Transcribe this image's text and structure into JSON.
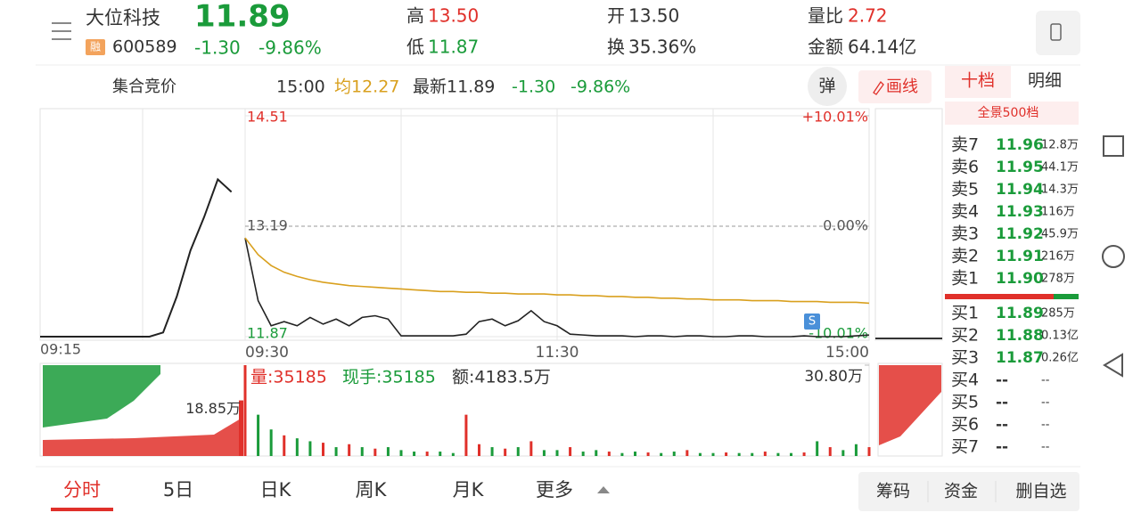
{
  "header": {
    "name": "大位科技",
    "price": "11.89",
    "tag": "融",
    "code": "600589",
    "change": "-1.30",
    "change_pct": "-9.86%",
    "stats": [
      {
        "label": "高",
        "value": "13.50"
      },
      {
        "label": "开",
        "value": "13.50"
      },
      {
        "label": "量比",
        "value": "2.72"
      },
      {
        "label": "低",
        "value": "11.87"
      },
      {
        "label": "换",
        "value": "35.36%"
      },
      {
        "label": "金额",
        "value": "64.14亿"
      }
    ]
  },
  "toolbar": {
    "mode": "集合竞价",
    "time": "15:00",
    "avg": "均12.27",
    "latest": "最新11.89",
    "change": "-1.30",
    "change_pct": "-9.86%",
    "popup": "弹",
    "draw": "画线"
  },
  "chart_data": {
    "type": "line",
    "x": [
      "09:30",
      "09:35",
      "09:40",
      "09:45",
      "09:50",
      "09:55",
      "10:00",
      "10:05",
      "10:10",
      "10:15",
      "10:20",
      "10:25",
      "10:30",
      "10:35",
      "10:40",
      "10:45",
      "10:50",
      "10:55",
      "11:00",
      "11:05",
      "11:10",
      "11:15",
      "11:20",
      "11:25",
      "11:30",
      "13:05",
      "13:10",
      "13:15",
      "13:20",
      "13:25",
      "13:30",
      "13:35",
      "13:40",
      "13:45",
      "13:50",
      "13:55",
      "14:00",
      "14:05",
      "14:10",
      "14:15",
      "14:20",
      "14:25",
      "14:30",
      "14:35",
      "14:40",
      "14:45",
      "14:50",
      "14:55",
      "15:00"
    ],
    "series": [
      {
        "color": "#222222",
        "values": [
          13.05,
          12.3,
          12.0,
          12.05,
          12.0,
          12.1,
          12.02,
          12.08,
          12.0,
          12.1,
          12.12,
          12.08,
          11.88,
          11.88,
          11.88,
          11.88,
          11.88,
          11.9,
          12.05,
          12.08,
          12.0,
          12.06,
          12.18,
          12.05,
          12.0,
          11.9,
          11.89,
          11.88,
          11.88,
          11.88,
          11.87,
          11.88,
          11.88,
          11.87,
          11.88,
          11.88,
          11.87,
          11.87,
          11.88,
          11.88,
          11.87,
          11.87,
          11.87,
          11.88,
          11.87,
          11.87,
          11.87,
          11.88,
          11.89
        ]
      },
      {
        "color": "#d9a01e",
        "values": [
          13.05,
          12.85,
          12.72,
          12.64,
          12.59,
          12.55,
          12.52,
          12.5,
          12.48,
          12.47,
          12.46,
          12.45,
          12.44,
          12.43,
          12.42,
          12.41,
          12.41,
          12.4,
          12.4,
          12.39,
          12.39,
          12.38,
          12.38,
          12.38,
          12.37,
          12.37,
          12.36,
          12.36,
          12.35,
          12.35,
          12.34,
          12.34,
          12.33,
          12.33,
          12.32,
          12.32,
          12.31,
          12.31,
          12.31,
          12.3,
          12.3,
          12.3,
          12.29,
          12.29,
          12.29,
          12.28,
          12.28,
          12.28,
          12.27
        ]
      }
    ],
    "ylim": [
      11.87,
      14.51
    ],
    "yticks": [
      14.51,
      13.19,
      11.87
    ],
    "y2lim": [
      -10.01,
      10.01
    ],
    "y2ticks": [
      {
        "value": 10.01,
        "label": "+10.01%"
      },
      {
        "value": 0,
        "label": "0.00%"
      },
      {
        "value": -10.01,
        "label": "-10.01%"
      }
    ],
    "grid": true,
    "signal": "S",
    "auction": {
      "color": "#222222",
      "x": [
        "09:15",
        "09:16",
        "09:17",
        "09:18",
        "09:19",
        "09:20",
        "09:21",
        "09:22",
        "09:23",
        "09:24",
        "09:25",
        "09:26",
        "09:27",
        "09:28",
        "09:29"
      ],
      "values": [
        11.87,
        11.87,
        11.87,
        11.87,
        11.87,
        11.87,
        11.87,
        11.87,
        11.87,
        11.92,
        12.35,
        12.9,
        13.3,
        13.75,
        13.6
      ]
    },
    "volume": {
      "texts": [
        "量:35185",
        "现手:35185",
        "额:4183.5万"
      ],
      "ylim": [
        0,
        30.8
      ],
      "yticks": [
        {
          "value": 30.8,
          "label": "30.80万"
        }
      ],
      "auction_value": {
        "value": 18.85,
        "label": "18.85万"
      },
      "values": [
        30.8,
        14,
        9,
        7,
        6,
        5,
        4.5,
        3,
        4,
        3,
        2.5,
        3,
        2,
        1.5,
        1.5,
        1.5,
        1,
        14,
        4,
        3,
        2.5,
        3,
        5,
        2,
        2,
        3,
        1.5,
        2,
        1.5,
        1,
        1.5,
        1.2,
        1,
        1.5,
        2,
        1,
        1,
        1.2,
        1,
        1,
        1.5,
        1,
        1,
        1.2,
        5,
        3,
        2,
        4,
        3
      ],
      "colors": [
        "#e0302a",
        "#1a9b3a",
        "#1a9b3a",
        "#e0302a",
        "#1a9b3a",
        "#1a9b3a",
        "#e0302a",
        "#1a9b3a",
        "#e0302a",
        "#1a9b3a",
        "#e0302a",
        "#1a9b3a",
        "#1a9b3a",
        "#1a9b3a",
        "#e0302a",
        "#1a9b3a",
        "#1a9b3a",
        "#e0302a",
        "#e0302a",
        "#1a9b3a",
        "#e0302a",
        "#1a9b3a",
        "#e0302a",
        "#1a9b3a",
        "#1a9b3a",
        "#e0302a",
        "#1a9b3a",
        "#1a9b3a",
        "#e0302a",
        "#1a9b3a",
        "#1a9b3a",
        "#e0302a",
        "#1a9b3a",
        "#1a9b3a",
        "#e0302a",
        "#1a9b3a",
        "#1a9b3a",
        "#e0302a",
        "#1a9b3a",
        "#1a9b3a",
        "#e0302a",
        "#1a9b3a",
        "#1a9b3a",
        "#e0302a",
        "#1a9b3a",
        "#e0302a",
        "#1a9b3a",
        "#1a9b3a",
        "#e0302a"
      ]
    }
  },
  "order_book": {
    "tabs": [
      "十档",
      "明细"
    ],
    "panorama": "全景500档",
    "asks": [
      {
        "label": "卖7",
        "price": "11.96",
        "volume": "12.8万"
      },
      {
        "label": "卖6",
        "price": "11.95",
        "volume": "44.1万"
      },
      {
        "label": "卖5",
        "price": "11.94",
        "volume": "14.3万"
      },
      {
        "label": "卖4",
        "price": "11.93",
        "volume": "116万"
      },
      {
        "label": "卖3",
        "price": "11.92",
        "volume": "45.9万"
      },
      {
        "label": "卖2",
        "price": "11.91",
        "volume": "216万"
      },
      {
        "label": "卖1",
        "price": "11.90",
        "volume": "278万"
      }
    ],
    "bids": [
      {
        "label": "买1",
        "price": "11.89",
        "volume": "285万"
      },
      {
        "label": "买2",
        "price": "11.88",
        "volume": "0.13亿"
      },
      {
        "label": "买3",
        "price": "11.87",
        "volume": "0.26亿"
      },
      {
        "label": "买4",
        "price": "--",
        "volume": "--"
      },
      {
        "label": "买5",
        "price": "--",
        "volume": "--"
      },
      {
        "label": "买6",
        "price": "--",
        "volume": "--"
      },
      {
        "label": "买7",
        "price": "--",
        "volume": "--"
      }
    ]
  },
  "bottom_tabs": [
    "分时",
    "5日",
    "日K",
    "周K",
    "月K",
    "更多"
  ],
  "bottom_buttons": [
    "筹码",
    "资金",
    "删自选"
  ]
}
